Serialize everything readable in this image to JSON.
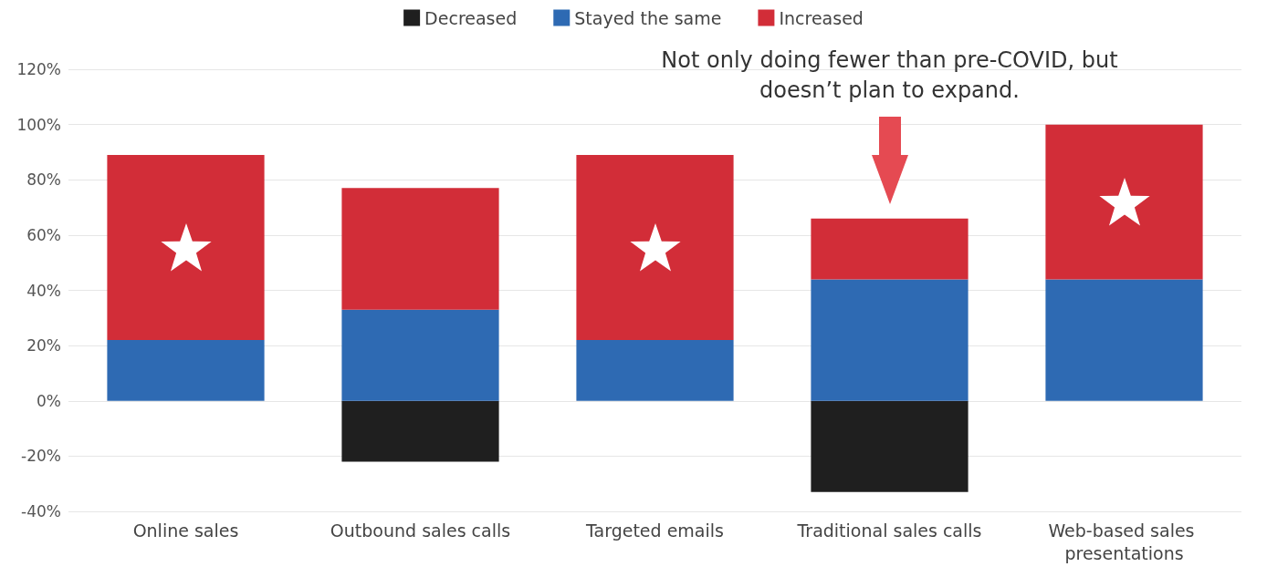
{
  "chart_data": {
    "type": "bar",
    "stacked": true,
    "categories": [
      "Online sales",
      "Outbound sales calls",
      "Targeted emails",
      "Traditional sales calls",
      "Web-based sales presentations"
    ],
    "series": [
      {
        "name": "Decreased",
        "color": "#1f1f1f",
        "values": [
          null,
          -22,
          null,
          -33,
          null
        ]
      },
      {
        "name": "Stayed the same",
        "color": "#2e6ab3",
        "values": [
          22,
          33,
          22,
          44,
          44
        ]
      },
      {
        "name": "Increased",
        "color": "#d22d38",
        "values": [
          67,
          44,
          67,
          22,
          56
        ]
      }
    ],
    "ylim": [
      -40,
      120
    ],
    "yticks": [
      {
        "value": -40,
        "label": "-40%"
      },
      {
        "value": -20,
        "label": "-20%"
      },
      {
        "value": 0,
        "label": "0%"
      },
      {
        "value": 20,
        "label": "20%"
      },
      {
        "value": 40,
        "label": "40%"
      },
      {
        "value": 60,
        "label": "60%"
      },
      {
        "value": 80,
        "label": "80%"
      },
      {
        "value": 100,
        "label": "100%"
      },
      {
        "value": 120,
        "label": "120%"
      }
    ],
    "grid": "y",
    "legend": "top",
    "annotations": [
      "Not only doing fewer than pre-COVID, but doesn’t plan to expand."
    ]
  }
}
